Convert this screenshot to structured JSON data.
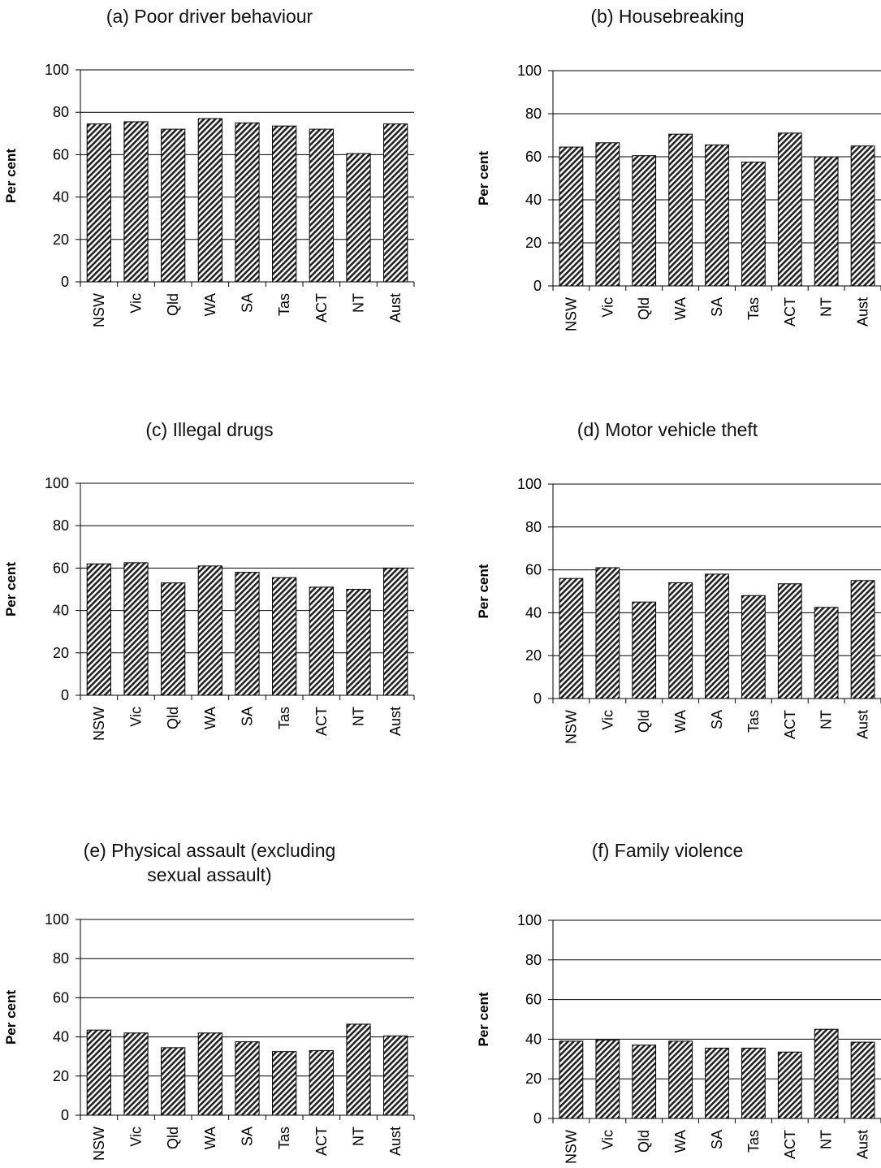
{
  "chart_data": [
    {
      "type": "bar",
      "title": "(a) Poor driver behaviour",
      "ylabel": "Per cent",
      "ylim": [
        0,
        100
      ],
      "yticks": [
        "0",
        "20",
        "40",
        "60",
        "80",
        "100"
      ],
      "categories": [
        "NSW",
        "Vic",
        "Qld",
        "WA",
        "SA",
        "Tas",
        "ACT",
        "NT",
        "Aust"
      ],
      "values": [
        74.5,
        75.5,
        72,
        77,
        75,
        73.5,
        72,
        60.5,
        74.5
      ],
      "grid": true
    },
    {
      "type": "bar",
      "title": "(b) Housebreaking",
      "ylabel": "Per cent",
      "ylim": [
        0,
        100
      ],
      "yticks": [
        "0",
        "20",
        "40",
        "60",
        "80",
        "100"
      ],
      "categories": [
        "NSW",
        "Vic",
        "Qld",
        "WA",
        "SA",
        "Tas",
        "ACT",
        "NT",
        "Aust"
      ],
      "values": [
        64.5,
        66.5,
        60.5,
        70.5,
        65.5,
        57.5,
        71,
        60,
        65
      ],
      "grid": true
    },
    {
      "type": "bar",
      "title": "(c) Illegal drugs",
      "ylabel": "Per cent",
      "ylim": [
        0,
        100
      ],
      "yticks": [
        "0",
        "20",
        "40",
        "60",
        "80",
        "100"
      ],
      "categories": [
        "NSW",
        "Vic",
        "Qld",
        "WA",
        "SA",
        "Tas",
        "ACT",
        "NT",
        "Aust"
      ],
      "values": [
        62,
        62.5,
        53,
        61,
        58,
        55.5,
        51,
        50,
        60
      ],
      "grid": true
    },
    {
      "type": "bar",
      "title": "(d) Motor vehicle theft",
      "ylabel": "Per cent",
      "ylim": [
        0,
        100
      ],
      "yticks": [
        "0",
        "20",
        "40",
        "60",
        "80",
        "100"
      ],
      "categories": [
        "NSW",
        "Vic",
        "Qld",
        "WA",
        "SA",
        "Tas",
        "ACT",
        "NT",
        "Aust"
      ],
      "values": [
        56,
        61,
        45,
        54,
        58,
        48,
        53.5,
        42.5,
        55
      ],
      "grid": true
    },
    {
      "type": "bar",
      "title": "(e) Physical assault (excluding sexual assault)",
      "title_lines": [
        "(e) Physical assault (excluding",
        "sexual assault)"
      ],
      "ylabel": "Per cent",
      "ylim": [
        0,
        100
      ],
      "yticks": [
        "0",
        "20",
        "40",
        "60",
        "80",
        "100"
      ],
      "categories": [
        "NSW",
        "Vic",
        "Qld",
        "WA",
        "SA",
        "Tas",
        "ACT",
        "NT",
        "Aust"
      ],
      "values": [
        43.5,
        42,
        34.5,
        42,
        37.5,
        32.5,
        33,
        46.5,
        40.5
      ],
      "grid": true
    },
    {
      "type": "bar",
      "title": "(f) Family violence",
      "ylabel": "Per cent",
      "ylim": [
        0,
        100
      ],
      "yticks": [
        "0",
        "20",
        "40",
        "60",
        "80",
        "100"
      ],
      "categories": [
        "NSW",
        "Vic",
        "Qld",
        "WA",
        "SA",
        "Tas",
        "ACT",
        "NT",
        "Aust"
      ],
      "values": [
        39,
        39.5,
        37,
        39,
        35.5,
        35.5,
        33.5,
        45,
        38.5
      ],
      "grid": true
    }
  ]
}
